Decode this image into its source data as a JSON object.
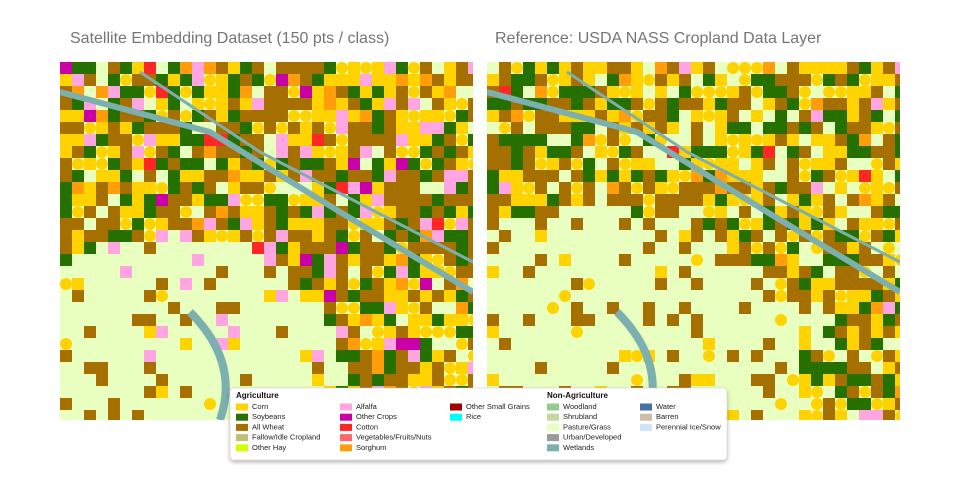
{
  "panels": [
    {
      "title": "Satellite Embedding Dataset (150 pts / class)"
    },
    {
      "title": "Reference: USDA NASS Cropland Data Layer"
    }
  ],
  "legend": {
    "groups": [
      {
        "title": "Agriculture",
        "columns": [
          [
            {
              "label": "Corn",
              "color": "#ffd300"
            },
            {
              "label": "Soybeans",
              "color": "#267000"
            },
            {
              "label": "All Wheat",
              "color": "#a57000"
            },
            {
              "label": "Fallow/Idle Cropland",
              "color": "#bfbf77"
            },
            {
              "label": "Other Hay",
              "color": "#d1ff00"
            }
          ],
          [
            {
              "label": "Alfalfa",
              "color": "#ffa5e2"
            },
            {
              "label": "Other Crops",
              "color": "#c900a5"
            },
            {
              "label": "Cotton",
              "color": "#ff2626"
            },
            {
              "label": "Vegetables/Fruits/Nuts",
              "color": "#ff6666"
            },
            {
              "label": "Sorghum",
              "color": "#ff9e0a"
            }
          ],
          [
            {
              "label": "Other Small Grains",
              "color": "#a50000"
            },
            {
              "label": "Rice",
              "color": "#00ffff"
            }
          ]
        ]
      },
      {
        "title": "Non-Agriculture",
        "columns": [
          [
            {
              "label": "Woodland",
              "color": "#93cc93"
            },
            {
              "label": "Shrubland",
              "color": "#c6d69e"
            },
            {
              "label": "Pasture/Grass",
              "color": "#e8ffbf"
            },
            {
              "label": "Urban/Developed",
              "color": "#9b9b9b"
            },
            {
              "label": "Wetlands",
              "color": "#7cafaf"
            }
          ],
          [
            {
              "label": "Water",
              "color": "#4970a3"
            },
            {
              "label": "Barren",
              "color": "#ccbfa3"
            },
            {
              "label": "Perennial Ice/Snow",
              "color": "#d2e2f8"
            }
          ]
        ]
      }
    ]
  }
}
